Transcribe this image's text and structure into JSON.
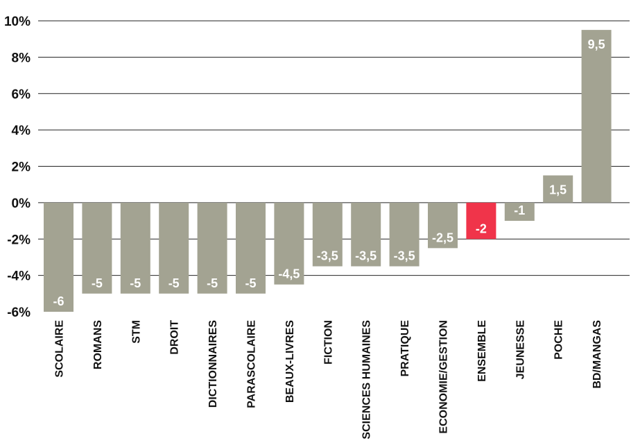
{
  "chart_data": {
    "type": "bar",
    "categories": [
      "SCOLAIRE",
      "ROMANS",
      "STM",
      "DROIT",
      "DICTIONNAIRES",
      "PARASCOLAIRE",
      "BEAUX-LIVRES",
      "FICTION",
      "SCIENCES HUMAINES",
      "PRATIQUE",
      "ECONOMIE/GESTION",
      "ENSEMBLE",
      "JEUNESSE",
      "POCHE",
      "BD/MANGAS"
    ],
    "values": [
      -6,
      -5,
      -5,
      -5,
      -5,
      -5,
      -4.5,
      -3.5,
      -3.5,
      -3.5,
      -2.5,
      -2,
      -1,
      1.5,
      9.5
    ],
    "value_labels": [
      "-6",
      "-5",
      "-5",
      "-5",
      "-5",
      "-5",
      "-4,5",
      "-3,5",
      "-3,5",
      "-3,5",
      "-2,5",
      "-2",
      "-1",
      "1,5",
      "9,5"
    ],
    "y_ticks": [
      10,
      8,
      6,
      4,
      2,
      0,
      -2,
      -4,
      -6
    ],
    "y_tick_labels": [
      "10%",
      "8%",
      "6%",
      "4%",
      "2%",
      "0%",
      "-2%",
      "-4%",
      "-6%"
    ],
    "ylim": [
      -6,
      10
    ],
    "grid": true,
    "title": "",
    "xlabel": "",
    "ylabel": "",
    "highlight_category": "ENSEMBLE",
    "colors": {
      "bar": "#a3a392",
      "highlight": "#f0344a",
      "grid": "#222222",
      "text": "#111111"
    }
  }
}
